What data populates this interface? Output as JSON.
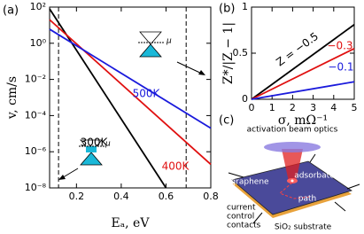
{
  "chart_data": [
    {
      "type": "line",
      "panel_label": "(a)",
      "xlabel": "Eₐ, eV",
      "ylabel": "v, cm/s",
      "log_y": true,
      "xlim": [
        0.08,
        0.8
      ],
      "ylim": [
        1e-08,
        100
      ],
      "xticks": [
        0.2,
        0.4,
        0.6,
        0.8
      ],
      "yticks": [
        {
          "value": 1e-08,
          "label": "10⁻⁸"
        },
        {
          "value": 1e-06,
          "label": "10⁻⁶"
        },
        {
          "value": 0.0001,
          "label": "10⁻⁴"
        },
        {
          "value": 0.01,
          "label": "10⁻²"
        },
        {
          "value": 1,
          "label": "10⁰"
        },
        {
          "value": 100,
          "label": "10²"
        }
      ],
      "vlines": [
        0.12,
        0.69
      ],
      "series": [
        {
          "name": "300K",
          "color": "#000000",
          "x": [
            0.08,
            0.6
          ],
          "values": [
            80,
            1e-08
          ]
        },
        {
          "name": "400K",
          "color": "#e01010",
          "x": [
            0.08,
            0.8
          ],
          "values": [
            20,
            2e-07
          ]
        },
        {
          "name": "500K",
          "color": "#1a1adc",
          "x": [
            0.08,
            0.8
          ],
          "values": [
            6,
            2e-05
          ]
        }
      ]
    },
    {
      "type": "line",
      "panel_label": "(b)",
      "xlabel": "σ, mΩ⁻¹",
      "ylabel": "Z*/|Z − 1|",
      "xlim": [
        0,
        5
      ],
      "ylim": [
        0,
        1
      ],
      "xticks": [
        0,
        1,
        2,
        3,
        4,
        5
      ],
      "yticks": [
        0,
        0.5,
        1
      ],
      "series": [
        {
          "name": "Z = −0.5",
          "color": "#000000",
          "x": [
            0,
            5
          ],
          "values": [
            0,
            0.81
          ]
        },
        {
          "name": "−0.3",
          "color": "#e01010",
          "x": [
            0,
            5
          ],
          "values": [
            0,
            0.55
          ]
        },
        {
          "name": "−0.1",
          "color": "#1a1adc",
          "x": [
            0,
            5
          ],
          "values": [
            0,
            0.19
          ]
        }
      ]
    }
  ],
  "diagram": {
    "panel_label": "(c)",
    "beam": "activation beam optics",
    "graphene": "graphene",
    "adsorbate": "adsorbate",
    "path": "path",
    "contacts": [
      "current",
      "control",
      "contacts"
    ],
    "substrate": "SiO₂ substrate",
    "mu": "μ"
  }
}
